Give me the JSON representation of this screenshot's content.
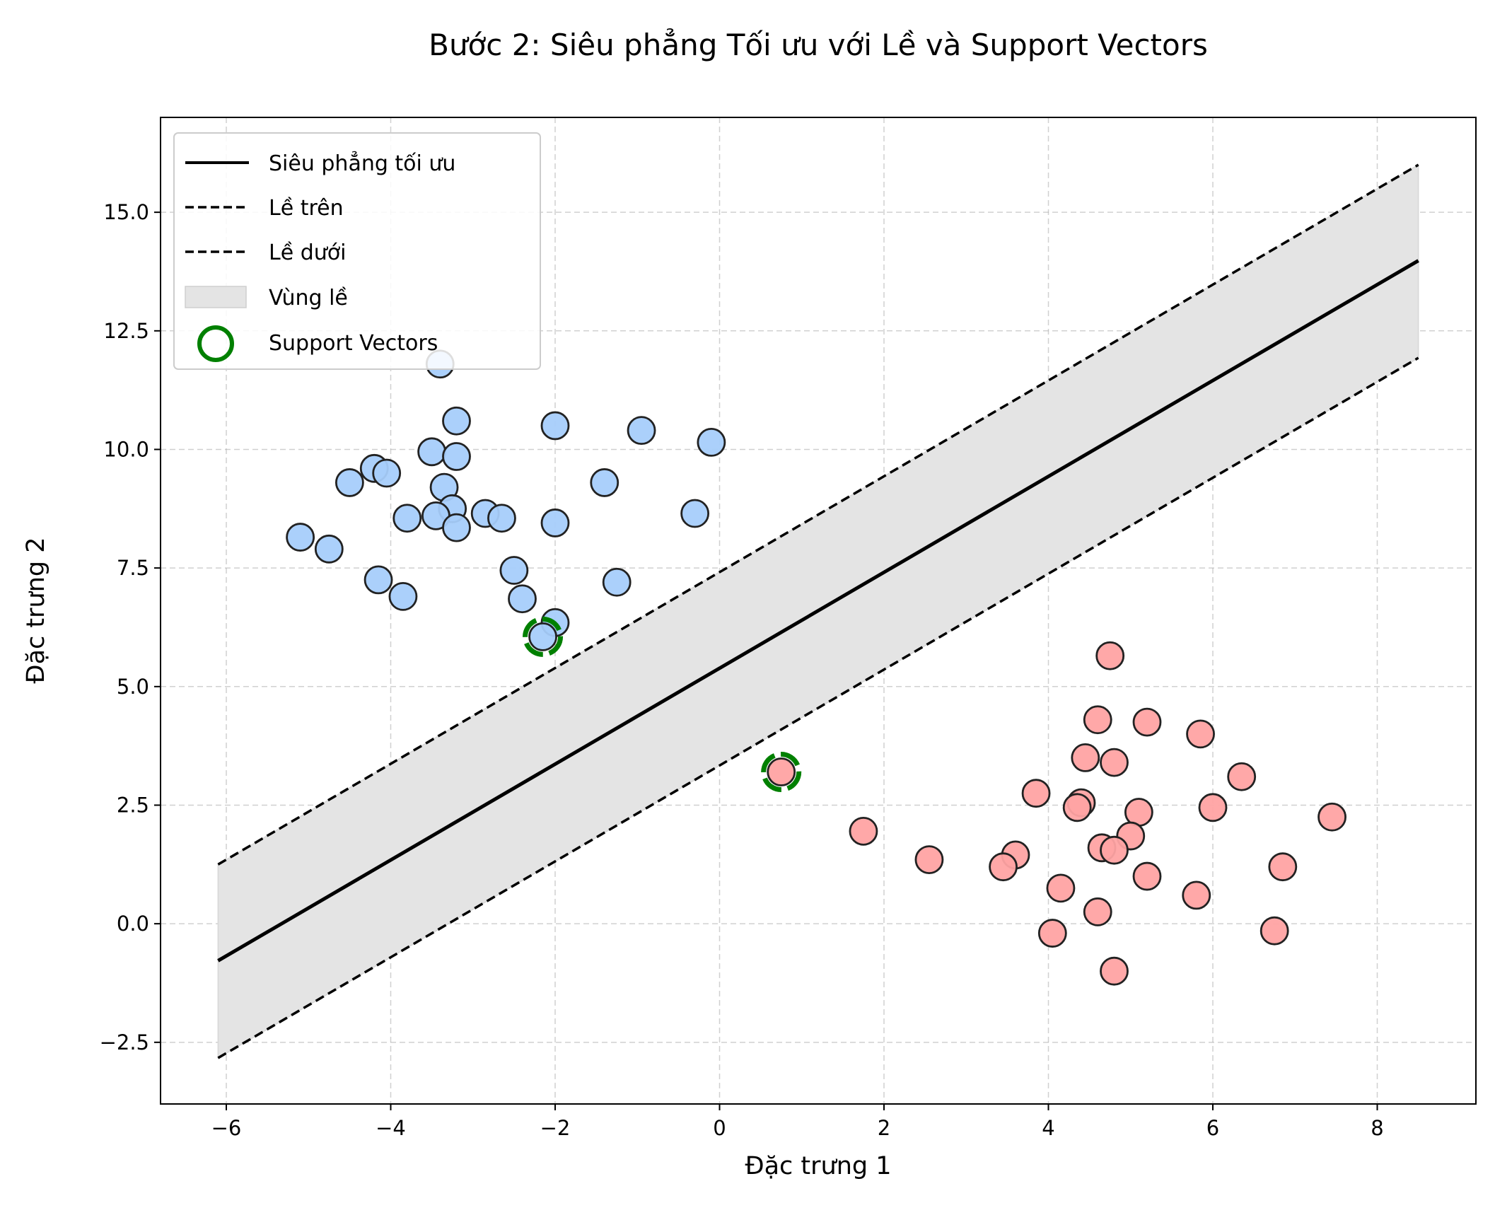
{
  "chart_data": {
    "type": "scatter",
    "title": "Bước 2: Siêu phẳng Tối ưu với Lề và Support Vectors",
    "xlabel": "Đặc trưng 1",
    "ylabel": "Đặc trưng 2",
    "xlim": [
      -6.8,
      9.2
    ],
    "ylim": [
      -3.8,
      17.0
    ],
    "xticks": [
      -6,
      -4,
      -2,
      0,
      2,
      4,
      6,
      8
    ],
    "yticks": [
      -2.5,
      0.0,
      2.5,
      5.0,
      7.5,
      10.0,
      12.5,
      15.0
    ],
    "xtick_labels": [
      "−6",
      "−4",
      "−2",
      "0",
      "2",
      "4",
      "6",
      "8"
    ],
    "ytick_labels": [
      "−2.5",
      "0.0",
      "2.5",
      "5.0",
      "7.5",
      "10.0",
      "12.5",
      "15.0"
    ],
    "grid": true,
    "legend_position": "upper-left",
    "colors": {
      "class_blue": "#a6cdfb",
      "class_red": "#ffa3a3",
      "point_edge": "#222222",
      "support_vector": "#008000",
      "margin_fill": "#e4e4e4",
      "hyperplane": "#000000"
    },
    "lines": [
      {
        "name": "Siêu phẳng tối ưu",
        "style": "solid",
        "x": [
          -6.1,
          8.5
        ],
        "y": [
          -0.78,
          13.98
        ]
      },
      {
        "name": "Lề trên",
        "style": "dashed",
        "x": [
          -6.1,
          8.5
        ],
        "y": [
          1.25,
          16.0
        ]
      },
      {
        "name": "Lề dưới",
        "style": "dashed",
        "x": [
          -6.1,
          8.5
        ],
        "y": [
          -2.83,
          11.93
        ]
      }
    ],
    "margin_band": {
      "name": "Vùng lề",
      "x": [
        -6.1,
        8.5
      ],
      "y_lower": [
        -2.83,
        11.93
      ],
      "y_upper": [
        1.25,
        16.0
      ]
    },
    "series": [
      {
        "class": "blue",
        "points": [
          [
            -3.4,
            11.8
          ],
          [
            -3.2,
            10.6
          ],
          [
            -2.0,
            10.5
          ],
          [
            -0.95,
            10.4
          ],
          [
            -0.1,
            10.15
          ],
          [
            -3.5,
            9.95
          ],
          [
            -3.2,
            9.85
          ],
          [
            -4.2,
            9.6
          ],
          [
            -4.05,
            9.5
          ],
          [
            -4.5,
            9.3
          ],
          [
            -1.4,
            9.3
          ],
          [
            -3.35,
            9.2
          ],
          [
            -3.25,
            8.75
          ],
          [
            -2.85,
            8.65
          ],
          [
            -0.3,
            8.65
          ],
          [
            -2.65,
            8.55
          ],
          [
            -3.8,
            8.55
          ],
          [
            -3.45,
            8.6
          ],
          [
            -2.0,
            8.45
          ],
          [
            -3.2,
            8.35
          ],
          [
            -5.1,
            8.15
          ],
          [
            -4.75,
            7.9
          ],
          [
            -2.5,
            7.45
          ],
          [
            -4.15,
            7.25
          ],
          [
            -1.25,
            7.2
          ],
          [
            -3.85,
            6.9
          ],
          [
            -2.4,
            6.85
          ],
          [
            -2.0,
            6.35
          ],
          [
            -2.15,
            6.05
          ]
        ]
      },
      {
        "class": "red",
        "points": [
          [
            4.75,
            5.65
          ],
          [
            4.6,
            4.3
          ],
          [
            5.2,
            4.25
          ],
          [
            5.85,
            4.0
          ],
          [
            4.45,
            3.5
          ],
          [
            4.8,
            3.4
          ],
          [
            0.75,
            3.2
          ],
          [
            6.35,
            3.1
          ],
          [
            3.85,
            2.75
          ],
          [
            4.4,
            2.55
          ],
          [
            4.35,
            2.45
          ],
          [
            6.0,
            2.45
          ],
          [
            5.1,
            2.35
          ],
          [
            7.45,
            2.25
          ],
          [
            1.75,
            1.95
          ],
          [
            5.0,
            1.85
          ],
          [
            4.65,
            1.6
          ],
          [
            4.8,
            1.55
          ],
          [
            3.6,
            1.45
          ],
          [
            2.55,
            1.35
          ],
          [
            3.45,
            1.2
          ],
          [
            6.85,
            1.2
          ],
          [
            5.2,
            1.0
          ],
          [
            4.15,
            0.75
          ],
          [
            5.8,
            0.6
          ],
          [
            4.6,
            0.25
          ],
          [
            6.75,
            -0.15
          ],
          [
            4.05,
            -0.2
          ],
          [
            4.8,
            -1.0
          ]
        ]
      }
    ],
    "support_vectors": [
      [
        -2.15,
        6.05
      ],
      [
        0.75,
        3.2
      ]
    ],
    "legend": [
      {
        "label": "Siêu phẳng tối ưu",
        "kind": "solid"
      },
      {
        "label": "Lề trên",
        "kind": "dashed"
      },
      {
        "label": "Lề dưới",
        "kind": "dashed"
      },
      {
        "label": "Vùng lề",
        "kind": "patch"
      },
      {
        "label": "Support Vectors",
        "kind": "circle"
      }
    ]
  }
}
